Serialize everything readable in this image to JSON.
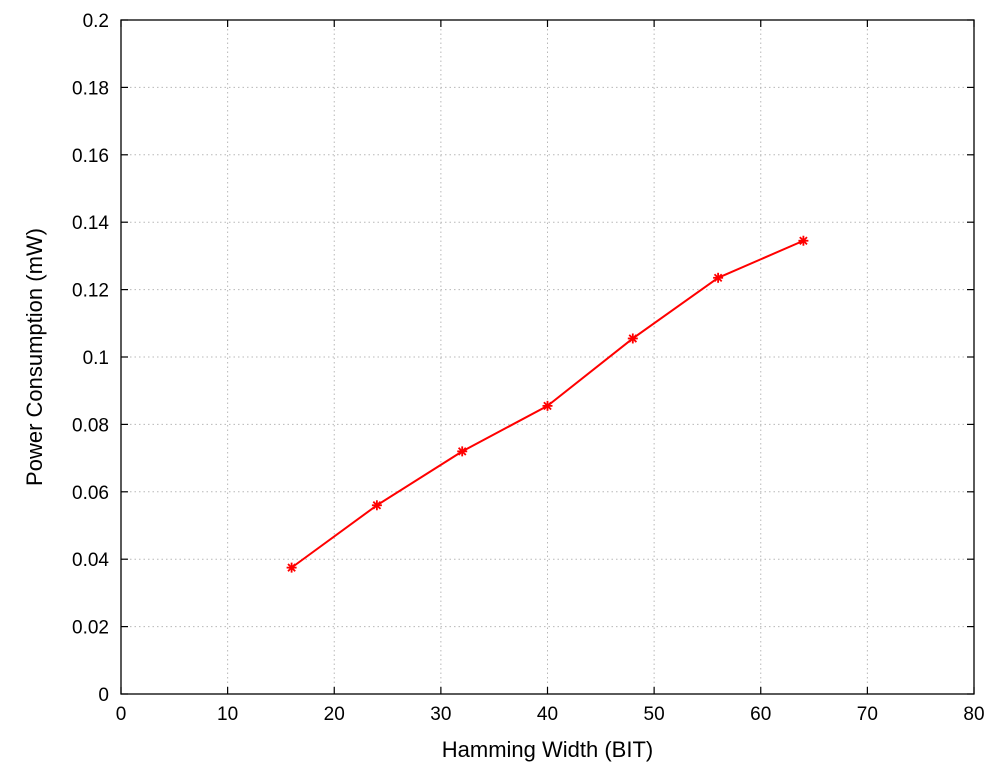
{
  "chart_data": {
    "type": "line",
    "title": "",
    "xlabel": "Hamming Width (BIT)",
    "ylabel": "Power Consumption (mW)",
    "xlim": [
      0,
      80
    ],
    "ylim": [
      0,
      0.2
    ],
    "xticks": [
      0,
      10,
      20,
      30,
      40,
      50,
      60,
      70,
      80
    ],
    "yticks": [
      0,
      0.02,
      0.04,
      0.06,
      0.08,
      0.1,
      0.12,
      0.14,
      0.16,
      0.18,
      0.2
    ],
    "xtick_labels": [
      "0",
      "10",
      "20",
      "30",
      "40",
      "50",
      "60",
      "70",
      "80"
    ],
    "ytick_labels": [
      "0",
      "0.02",
      "0.04",
      "0.06",
      "0.08",
      "0.1",
      "0.12",
      "0.14",
      "0.16",
      "0.18",
      "0.2"
    ],
    "grid": true,
    "series": [
      {
        "color": "#ff0000",
        "marker": "asterisk",
        "x": [
          16,
          24,
          32,
          40,
          48,
          56,
          64
        ],
        "y": [
          0.0375,
          0.056,
          0.072,
          0.0855,
          0.1055,
          0.1235,
          0.1345
        ]
      }
    ]
  }
}
